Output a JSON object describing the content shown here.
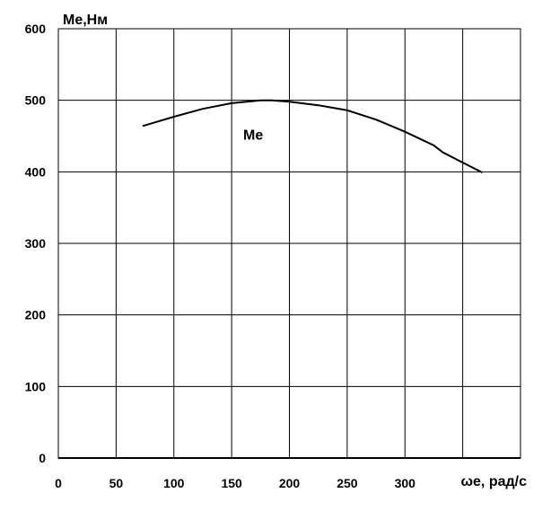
{
  "chart_data": {
    "type": "line",
    "title": "",
    "xlabel": "ωe, рад/с",
    "ylabel": "Ме,Нм",
    "xlim": [
      0,
      400
    ],
    "ylim": [
      0,
      600
    ],
    "x_ticks": [
      0,
      50,
      100,
      150,
      200,
      250,
      300
    ],
    "y_ticks": [
      0,
      100,
      200,
      300,
      400,
      500,
      600
    ],
    "grid": true,
    "series": [
      {
        "name": "Ме",
        "x": [
          73,
          100,
          125,
          150,
          175,
          185,
          200,
          225,
          250,
          275,
          300,
          325,
          333,
          350,
          367
        ],
        "y": [
          464,
          477,
          488,
          496,
          500,
          500,
          498,
          493,
          486,
          473,
          456,
          437,
          427,
          413,
          399
        ]
      }
    ]
  }
}
